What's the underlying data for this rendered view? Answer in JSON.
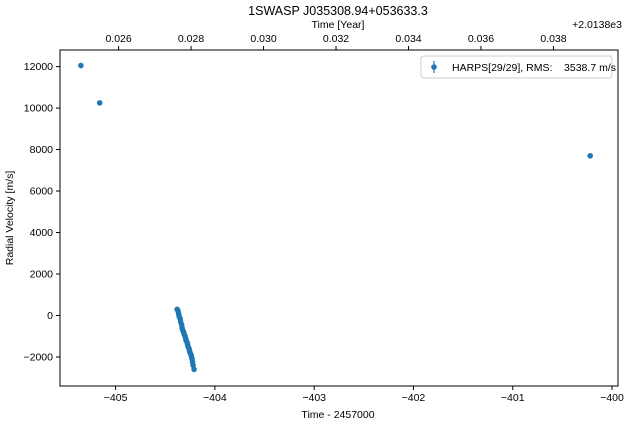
{
  "chart_data": {
    "type": "scatter",
    "title": "1SWASP J035308.94+053633.3",
    "xlabel": "Time - 2457000",
    "ylabel": "Radial Velocity [m/s]",
    "top_xlabel": "Time [Year]",
    "top_offset_label": "+2.0138e3",
    "xlim": [
      -405.56,
      -399.94
    ],
    "ylim": [
      -3400,
      12800
    ],
    "x_ticks": [
      -405,
      -404,
      -403,
      -402,
      -401,
      -400
    ],
    "y_ticks": [
      -2000,
      0,
      2000,
      4000,
      6000,
      8000,
      10000,
      12000
    ],
    "top_ticks": [
      {
        "label": "0.026",
        "x": -404.97
      },
      {
        "label": "0.028",
        "x": -404.24
      },
      {
        "label": "0.030",
        "x": -403.51
      },
      {
        "label": "0.032",
        "x": -402.78
      },
      {
        "label": "0.034",
        "x": -402.05
      },
      {
        "label": "0.036",
        "x": -401.32
      },
      {
        "label": "0.038",
        "x": -400.59
      }
    ],
    "legend": {
      "label": "HARPS[29/29], RMS:    3538.7 m/s",
      "position": "top-right"
    },
    "color": "#1f77b4",
    "series": [
      {
        "name": "HARPS[29/29], RMS:    3538.7 m/s",
        "x": [
          -405.35,
          -405.16,
          -400.22,
          -404.38,
          -404.37,
          -404.365,
          -404.36,
          -404.35,
          -404.345,
          -404.335,
          -404.33,
          -404.325,
          -404.315,
          -404.31,
          -404.3,
          -404.295,
          -404.29,
          -404.28,
          -404.275,
          -404.27,
          -404.26,
          -404.255,
          -404.25,
          -404.24,
          -404.235,
          -404.23,
          -404.225,
          -404.22,
          -404.21
        ],
        "y": [
          12050,
          10250,
          7700,
          300,
          200,
          80,
          -50,
          -150,
          -300,
          -450,
          -600,
          -700,
          -800,
          -900,
          -1000,
          -1100,
          -1200,
          -1300,
          -1400,
          -1500,
          -1600,
          -1700,
          -1800,
          -1900,
          -2000,
          -2100,
          -2250,
          -2400,
          -2600
        ]
      }
    ]
  }
}
